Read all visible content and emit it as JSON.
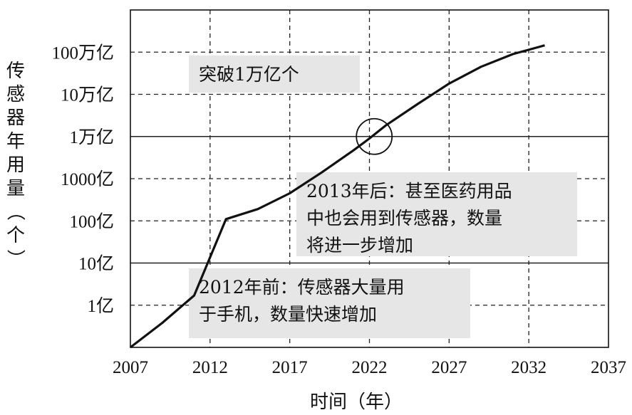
{
  "chart_data": {
    "type": "line",
    "title": "",
    "xlabel": "时间（年）",
    "ylabel": "传感器年用量（个）",
    "y_scale": "log",
    "grid": true,
    "xlim": [
      2007,
      2037
    ],
    "ylim": [
      10000000,
      1000000000000000
    ],
    "x_ticks": [
      "2007",
      "2012",
      "2017",
      "2022",
      "2027",
      "2032",
      "2037"
    ],
    "y_ticks": [
      "1亿",
      "10亿",
      "100亿",
      "1000亿",
      "1万亿",
      "10万亿",
      "100万亿"
    ],
    "series": [
      {
        "x": [
          2007,
          2009,
          2011,
          2013,
          2015,
          2017,
          2019,
          2021,
          2022,
          2023,
          2025,
          2027,
          2029,
          2031,
          2033
        ],
        "y": [
          10000000,
          38000000,
          170000000,
          11000000000,
          19000000000,
          45000000000,
          140000000000,
          470000000000,
          900000000000,
          1800000000000,
          5800000000000,
          18000000000000,
          45000000000000,
          90000000000000,
          145000000000000
        ]
      }
    ],
    "annotations": [
      {
        "text_lines": [
          "突破1万亿个"
        ]
      },
      {
        "text_lines": [
          "2013年后：甚至医药用品",
          "中也会用到传感器，数量",
          "将进一步增加"
        ]
      },
      {
        "text_lines": [
          "2012年前：传感器大量用",
          "于手机，数量快速增加"
        ]
      }
    ],
    "highlight": {
      "x": 2022.3,
      "y": 1000000000000
    }
  },
  "colors": {
    "line": "#111111",
    "grid": "#222222",
    "note_bg": "#e6e6e6"
  }
}
